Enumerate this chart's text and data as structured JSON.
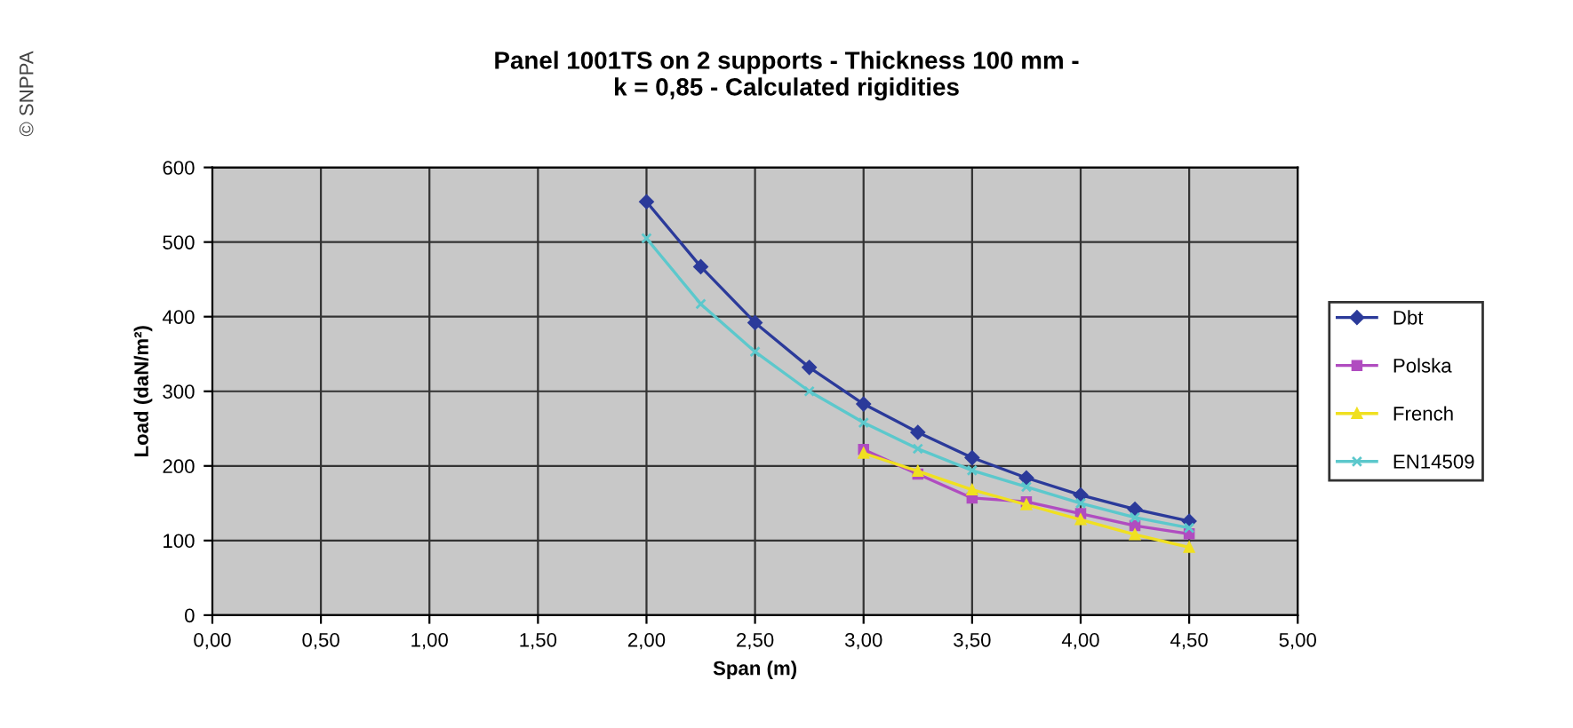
{
  "chart_data": {
    "type": "line",
    "title": "Panel 1001TS on 2 supports - Thickness 100 mm -\nk = 0,85 - Calculated rigidities",
    "xlabel": "Span (m)",
    "ylabel": "Load (daN/m²)",
    "annotations": [
      "© SNPPA"
    ],
    "x": [
      2.0,
      2.25,
      2.5,
      2.75,
      3.0,
      3.25,
      3.5,
      3.75,
      4.0,
      4.25,
      4.5
    ],
    "series": [
      {
        "name": "Dbt",
        "color": "#2b3a9a",
        "marker": "diamond",
        "values": [
          554,
          467,
          392,
          332,
          283,
          245,
          211,
          184,
          161,
          142,
          126
        ]
      },
      {
        "name": "Polska",
        "color": "#b04cc0",
        "marker": "square",
        "values": [
          null,
          null,
          null,
          null,
          222,
          189,
          157,
          152,
          136,
          120,
          109
        ]
      },
      {
        "name": "French",
        "color": "#f0e020",
        "marker": "triangle",
        "values": [
          null,
          null,
          null,
          null,
          217,
          193,
          168,
          148,
          128,
          108,
          91
        ]
      },
      {
        "name": "EN14509",
        "color": "#5cc8cc",
        "marker": "cross",
        "values": [
          505,
          417,
          353,
          300,
          258,
          223,
          194,
          172,
          150,
          131,
          117
        ]
      }
    ],
    "xlim": [
      0,
      5
    ],
    "xticks": [
      {
        "value": 0,
        "label": "0,00"
      },
      {
        "value": 0.5,
        "label": "0,50"
      },
      {
        "value": 1,
        "label": "1,00"
      },
      {
        "value": 1.5,
        "label": "1,50"
      },
      {
        "value": 2,
        "label": "2,00"
      },
      {
        "value": 2.5,
        "label": "2,50"
      },
      {
        "value": 3,
        "label": "3,00"
      },
      {
        "value": 3.5,
        "label": "3,50"
      },
      {
        "value": 4,
        "label": "4,00"
      },
      {
        "value": 4.5,
        "label": "4,50"
      },
      {
        "value": 5,
        "label": "5,00"
      }
    ],
    "ylim": [
      0,
      600
    ],
    "yticks": [
      0,
      100,
      200,
      300,
      400,
      500,
      600
    ],
    "grid": true,
    "legend": "right",
    "line_style": "solid"
  }
}
